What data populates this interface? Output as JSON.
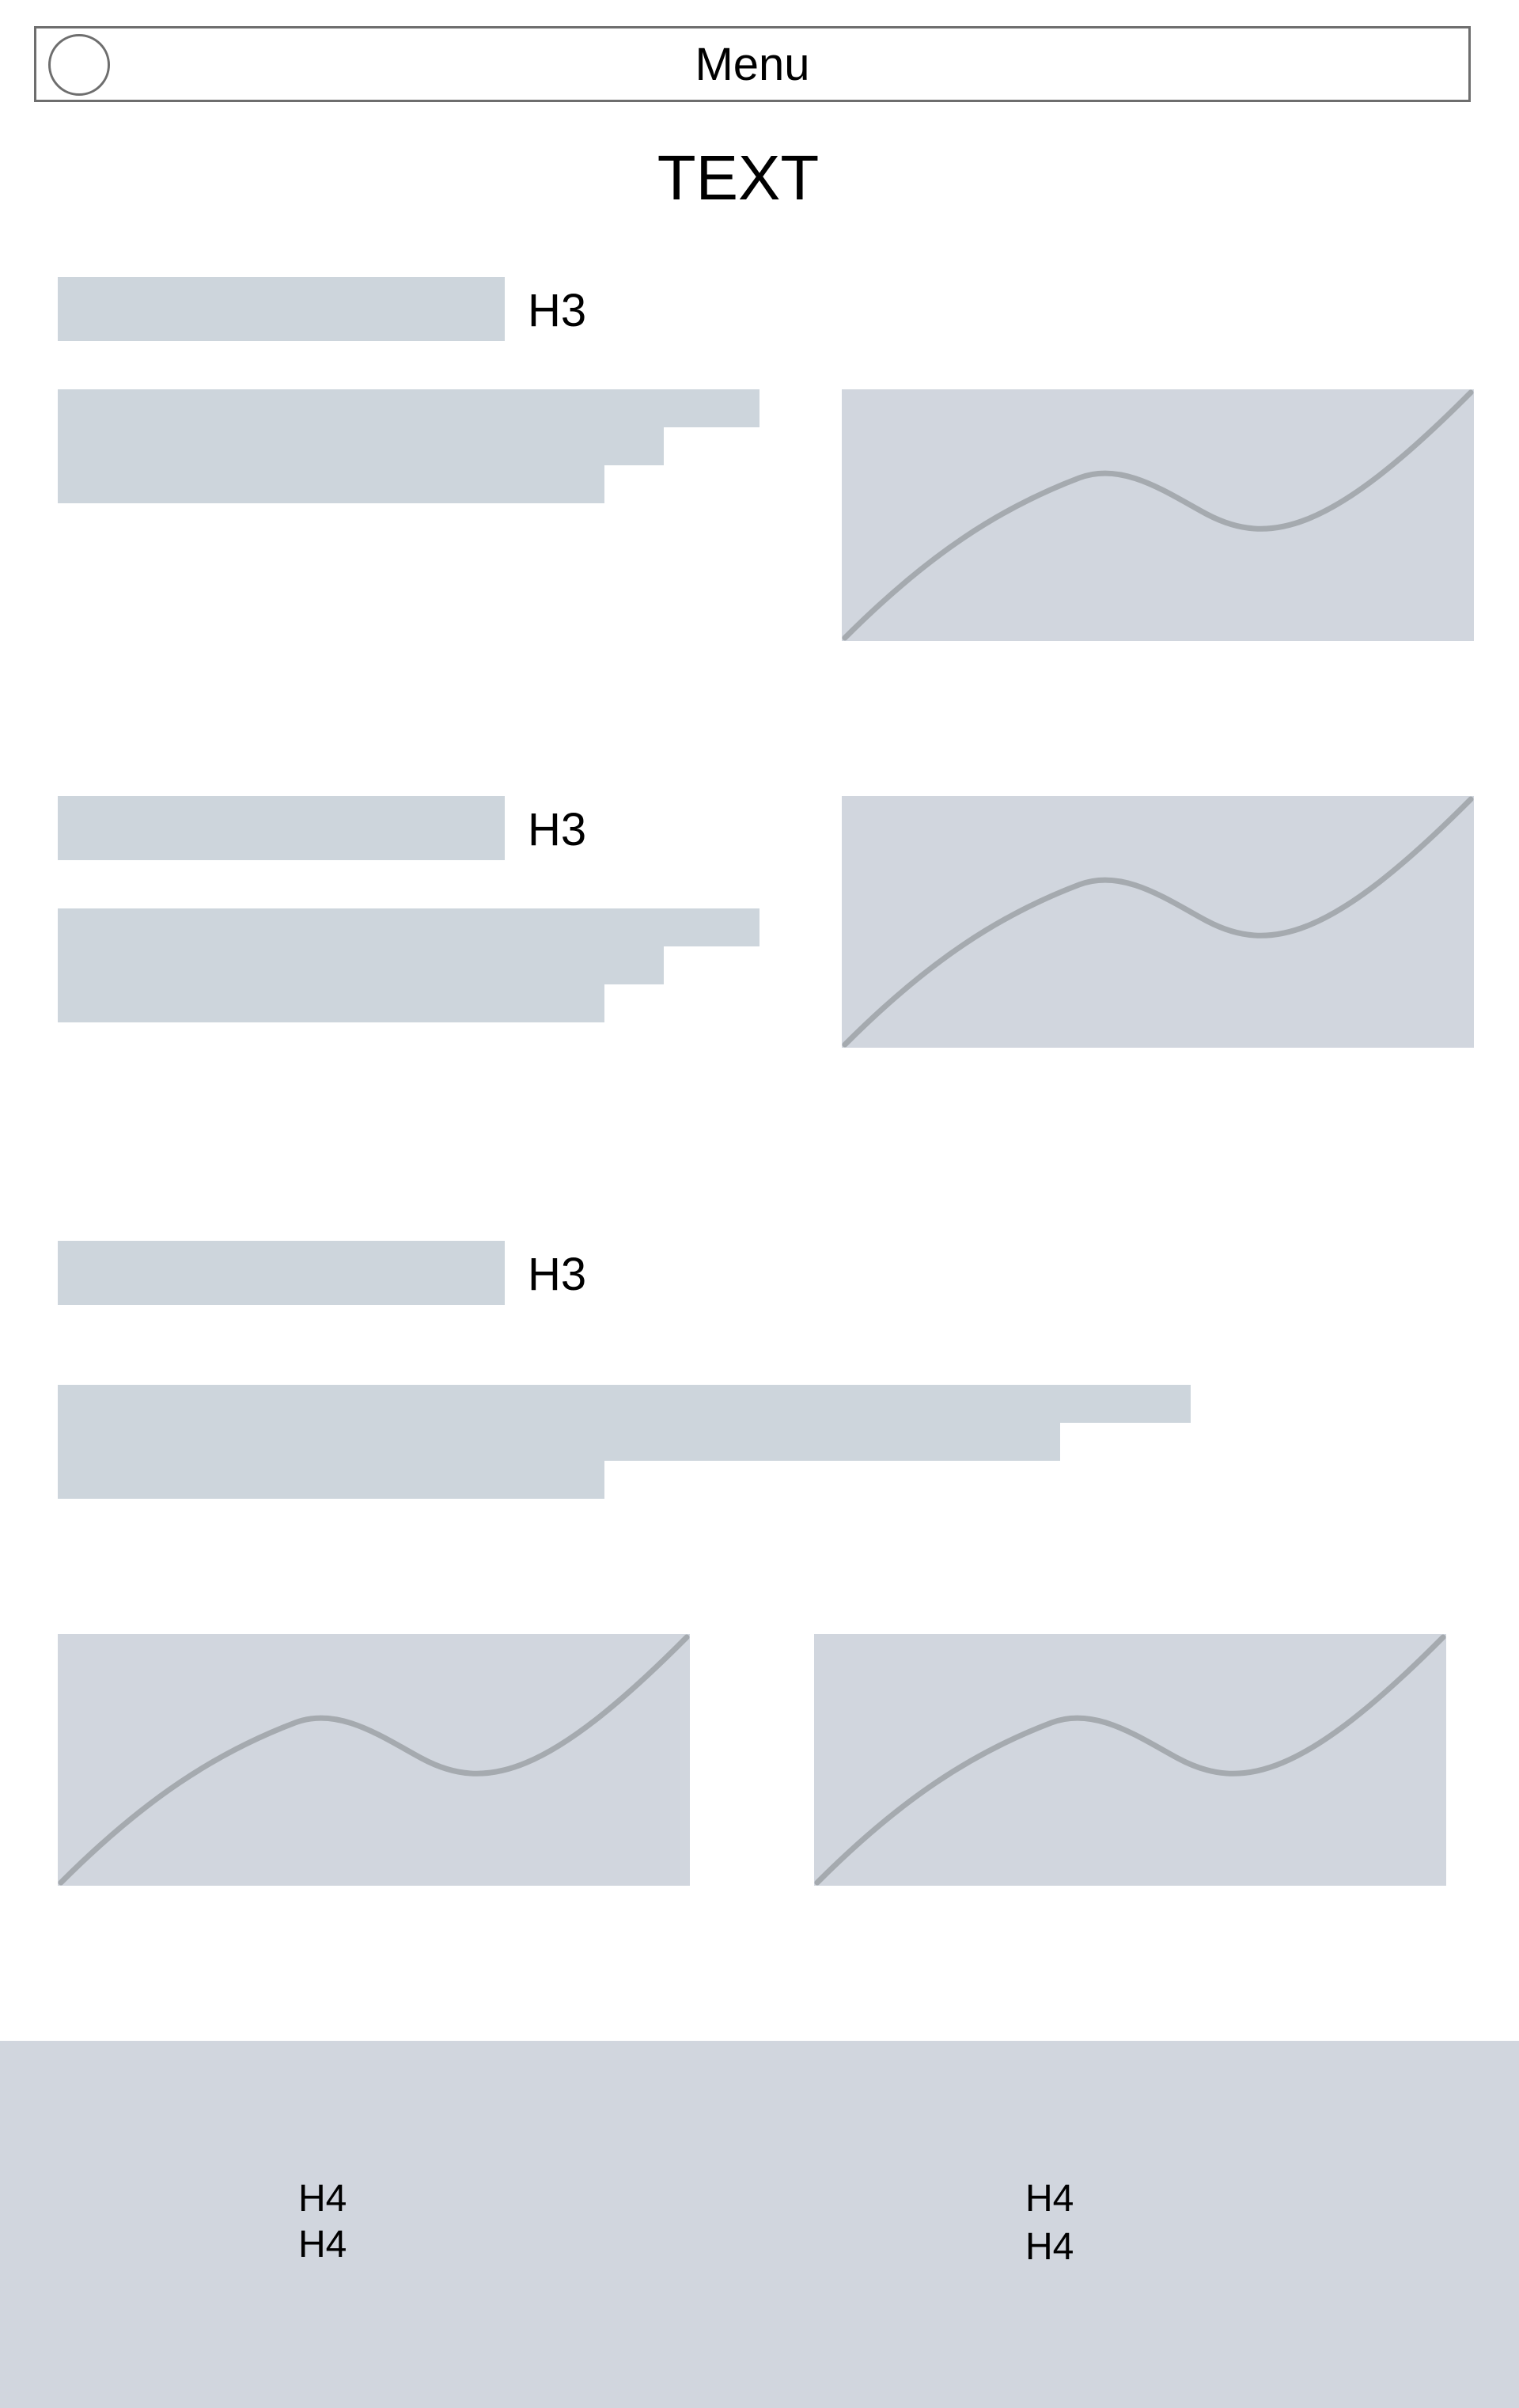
{
  "header": {
    "menu_label": "Menu",
    "title": "TEXT"
  },
  "sections": [
    {
      "heading": "H3"
    },
    {
      "heading": "H3"
    },
    {
      "heading": "H3"
    }
  ],
  "footer": {
    "col1": [
      "H4",
      "H4"
    ],
    "col2": [
      "H4",
      "H4"
    ]
  }
}
